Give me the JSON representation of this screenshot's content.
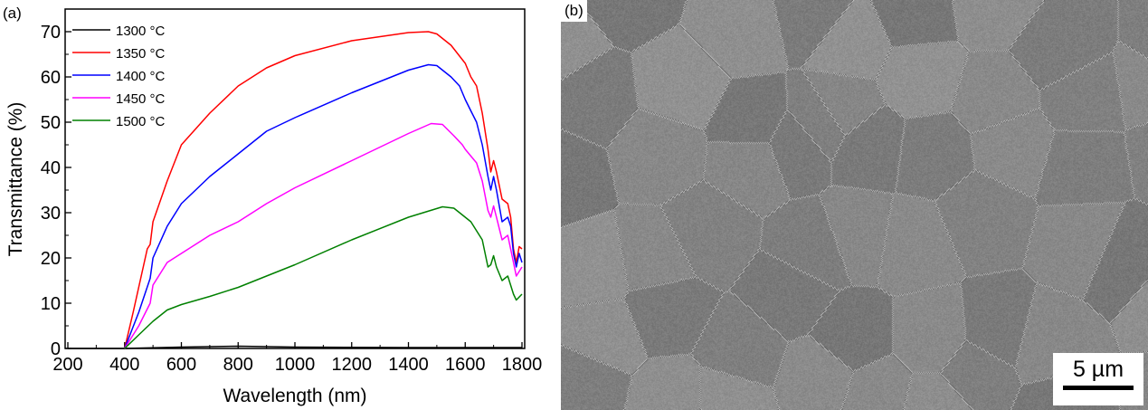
{
  "panel_a_label": "(a)",
  "panel_b_label": "(b)",
  "scale_bar_label": "5 µm",
  "chart_data": {
    "type": "line",
    "title": "",
    "xlabel": "Wavelength (nm)",
    "ylabel": "Transmittance (%)",
    "xlim": [
      200,
      1800
    ],
    "ylim": [
      0,
      75
    ],
    "xticks": [
      200,
      400,
      600,
      800,
      1000,
      1200,
      1400,
      1600,
      1800
    ],
    "yticks": [
      0,
      10,
      20,
      30,
      40,
      50,
      60,
      70
    ],
    "grid": false,
    "legend_position": "top-left",
    "series": [
      {
        "name": "1300 °C",
        "color": "#000000",
        "x": [
          200,
          400,
          600,
          800,
          1000,
          1400,
          1800
        ],
        "y": [
          0,
          0,
          0.3,
          0.5,
          0.3,
          0.2,
          0.2
        ]
      },
      {
        "name": "1350 °C",
        "color": "#ff0000",
        "x": [
          400,
          430,
          480,
          490,
          500,
          550,
          600,
          700,
          800,
          900,
          1000,
          1200,
          1400,
          1470,
          1500,
          1550,
          1600,
          1620,
          1640,
          1660,
          1680,
          1690,
          1700,
          1710,
          1730,
          1750,
          1760,
          1770,
          1780,
          1790,
          1800
        ],
        "y": [
          0,
          8,
          22,
          23,
          28,
          37,
          45,
          52,
          58,
          62,
          64.7,
          68,
          69.8,
          70,
          69.5,
          67,
          63,
          60,
          58,
          52,
          44,
          39,
          41.5,
          39,
          33,
          32,
          29,
          22,
          19,
          22.5,
          22
        ]
      },
      {
        "name": "1400 °C",
        "color": "#0000ff",
        "x": [
          400,
          450,
          490,
          500,
          550,
          600,
          700,
          800,
          900,
          1000,
          1200,
          1400,
          1470,
          1500,
          1550,
          1580,
          1600,
          1620,
          1640,
          1660,
          1680,
          1690,
          1700,
          1710,
          1730,
          1750,
          1760,
          1770,
          1780,
          1790,
          1800
        ],
        "y": [
          0,
          8,
          15.5,
          20,
          27,
          32,
          38,
          43,
          48,
          51,
          56.5,
          61.5,
          62.7,
          62.5,
          60,
          58,
          55,
          52.5,
          50,
          45,
          38,
          35,
          38,
          35,
          28,
          29,
          27,
          21,
          18,
          21,
          19
        ]
      },
      {
        "name": "1450 °C",
        "color": "#ff00ff",
        "x": [
          400,
          450,
          490,
          500,
          550,
          600,
          700,
          800,
          900,
          1000,
          1200,
          1400,
          1480,
          1520,
          1560,
          1590,
          1600,
          1640,
          1660,
          1680,
          1690,
          1700,
          1710,
          1730,
          1750,
          1770,
          1780,
          1800
        ],
        "y": [
          0,
          5,
          10,
          14,
          19,
          21,
          25,
          28,
          32,
          35.5,
          41.5,
          47.5,
          49.7,
          49.5,
          47,
          45,
          44,
          41,
          37,
          30.5,
          29,
          31.5,
          29,
          24,
          25,
          19,
          16,
          18
        ]
      },
      {
        "name": "1500 °C",
        "color": "#008000",
        "x": [
          400,
          450,
          500,
          550,
          600,
          700,
          800,
          900,
          1000,
          1200,
          1400,
          1520,
          1560,
          1580,
          1620,
          1660,
          1680,
          1690,
          1700,
          1710,
          1730,
          1750,
          1770,
          1780,
          1800
        ],
        "y": [
          0,
          3,
          6,
          8.5,
          9.7,
          11.5,
          13.5,
          16,
          18.5,
          24,
          29,
          31.3,
          31,
          30,
          28,
          24,
          18,
          18.5,
          20.5,
          18,
          15,
          16,
          12,
          10.7,
          12
        ]
      }
    ]
  }
}
